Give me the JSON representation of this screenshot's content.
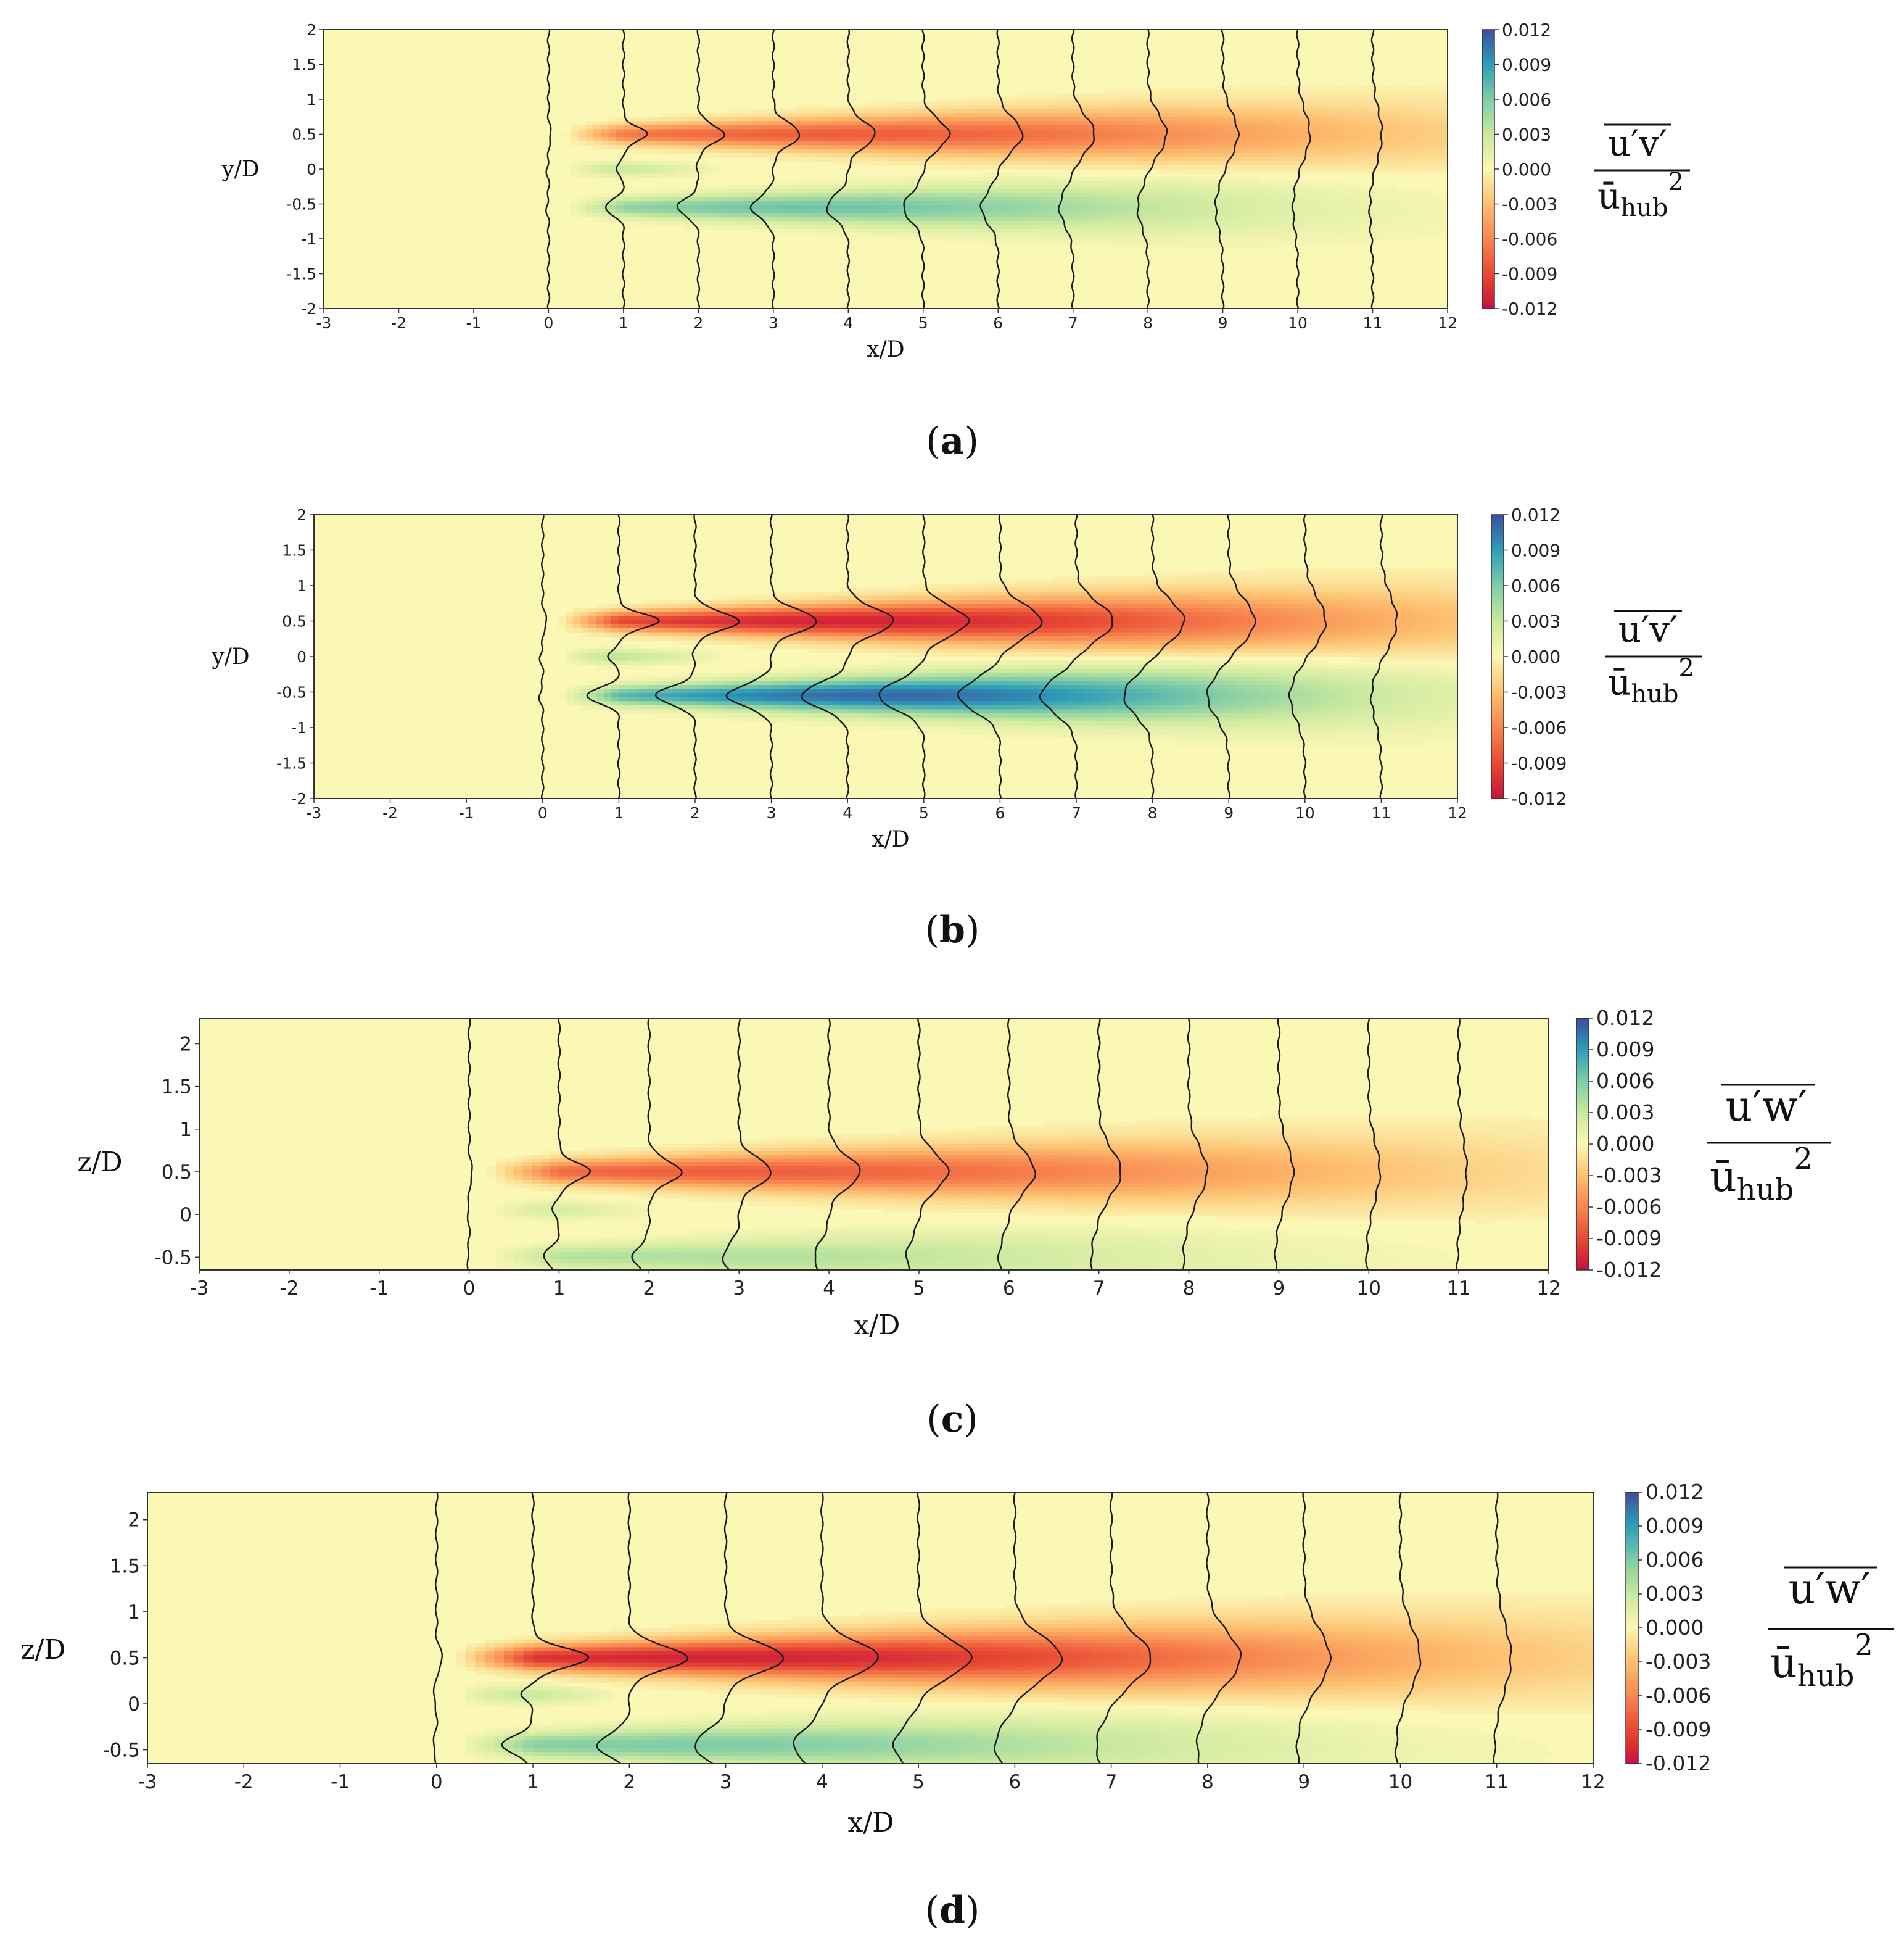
{
  "chart_data": [
    {
      "panel": "a",
      "type": "heatmap",
      "caption": "a",
      "xlabel": "x/D",
      "ylabel": "y/D",
      "xlim": [
        -3,
        12
      ],
      "ylim": [
        -2,
        2
      ],
      "xticks": [
        "-3",
        "-2",
        "-1",
        "0",
        "1",
        "2",
        "3",
        "4",
        "5",
        "6",
        "7",
        "8",
        "9",
        "10",
        "11",
        "12"
      ],
      "yticks": [
        "-2",
        "-1.5",
        "-1",
        "-0.5",
        "0",
        "0.5",
        "1",
        "1.5",
        "2"
      ],
      "colorbar": {
        "min": -0.012,
        "max": 0.012,
        "ticks": [
          "-0.012",
          "-0.009",
          "-0.006",
          "-0.003",
          "0.000",
          "0.003",
          "0.006",
          "0.009",
          "0.012"
        ],
        "quantity_top": "u′v′",
        "quantity_bottom": "ū",
        "quantity_sub": "hub",
        "quantity_sup": "2"
      },
      "field": {
        "upper_lobe_center": 0.5,
        "upper_peak": -0.008,
        "upper_peak_x": 4.0,
        "lower_lobe_center": -0.55,
        "lower_peak": 0.0065,
        "lower_peak_x": 3.5,
        "hub_lobe_center": 0.0,
        "hub_peak": 0.005,
        "hub_end_x": 2.5
      },
      "profile_stations": [
        0,
        1,
        2,
        3,
        4,
        5,
        6,
        7,
        8,
        9,
        10,
        11
      ],
      "profile_scale_frac": 0.45
    },
    {
      "panel": "b",
      "type": "heatmap",
      "caption": "b",
      "xlabel": "x/D",
      "ylabel": "y/D",
      "xlim": [
        -3,
        12
      ],
      "ylim": [
        -2,
        2
      ],
      "xticks": [
        "-3",
        "-2",
        "-1",
        "0",
        "1",
        "2",
        "3",
        "4",
        "5",
        "6",
        "7",
        "8",
        "9",
        "10",
        "11",
        "12"
      ],
      "yticks": [
        "-2",
        "-1.5",
        "-1",
        "-0.5",
        "0",
        "0.5",
        "1",
        "1.5",
        "2"
      ],
      "colorbar": {
        "min": -0.012,
        "max": 0.012,
        "ticks": [
          "-0.012",
          "-0.009",
          "-0.006",
          "-0.003",
          "0.000",
          "0.003",
          "0.006",
          "0.009",
          "0.012"
        ],
        "quantity_top": "u′v′",
        "quantity_bottom": "ū",
        "quantity_sub": "hub",
        "quantity_sup": "2"
      },
      "field": {
        "upper_lobe_center": 0.5,
        "upper_peak": -0.011,
        "upper_peak_x": 4.0,
        "lower_lobe_center": -0.55,
        "lower_peak": 0.011,
        "lower_peak_x": 4.5,
        "hub_lobe_center": 0.0,
        "hub_peak": 0.006,
        "hub_end_x": 2.5
      },
      "profile_stations": [
        0,
        1,
        2,
        3,
        4,
        5,
        6,
        7,
        8,
        9,
        10,
        11
      ],
      "profile_scale_frac": 0.55
    },
    {
      "panel": "c",
      "type": "heatmap",
      "caption": "c",
      "xlabel": "x/D",
      "ylabel": "z/D",
      "xlim": [
        -3,
        12
      ],
      "ylim": [
        -0.65,
        2.3
      ],
      "xticks": [
        "-3",
        "-2",
        "-1",
        "0",
        "1",
        "2",
        "3",
        "4",
        "5",
        "6",
        "7",
        "8",
        "9",
        "10",
        "11",
        "12"
      ],
      "yticks": [
        "-0.5",
        "0",
        "0.5",
        "1",
        "1.5",
        "2"
      ],
      "colorbar": {
        "min": -0.012,
        "max": 0.012,
        "ticks": [
          "-0.012",
          "-0.009",
          "-0.006",
          "-0.003",
          "0.000",
          "0.003",
          "0.006",
          "0.009",
          "0.012"
        ],
        "quantity_top": "u′w′",
        "quantity_bottom": "ū",
        "quantity_sub": "hub",
        "quantity_sup": "2"
      },
      "field": {
        "upper_lobe_center": 0.5,
        "upper_peak": -0.008,
        "upper_peak_x": 3.0,
        "lower_lobe_center": -0.5,
        "lower_peak": 0.004,
        "lower_peak_x": 2.5,
        "hub_lobe_center": 0.05,
        "hub_peak": 0.004,
        "hub_end_x": 2.3
      },
      "profile_stations": [
        0,
        1,
        2,
        3,
        4,
        5,
        6,
        7,
        8,
        9,
        10,
        11
      ],
      "profile_scale_frac": 0.45
    },
    {
      "panel": "d",
      "type": "heatmap",
      "caption": "d",
      "xlabel": "x/D",
      "ylabel": "z/D",
      "xlim": [
        -3,
        12
      ],
      "ylim": [
        -0.65,
        2.3
      ],
      "xticks": [
        "-3",
        "-2",
        "-1",
        "0",
        "1",
        "2",
        "3",
        "4",
        "5",
        "6",
        "7",
        "8",
        "9",
        "10",
        "11",
        "12"
      ],
      "yticks": [
        "-0.5",
        "0",
        "0.5",
        "1",
        "1.5",
        "2"
      ],
      "colorbar": {
        "min": -0.012,
        "max": 0.012,
        "ticks": [
          "-0.012",
          "-0.009",
          "-0.006",
          "-0.003",
          "0.000",
          "0.003",
          "0.006",
          "0.009",
          "0.012"
        ],
        "quantity_top": "u′w′",
        "quantity_bottom": "ū",
        "quantity_sub": "hub",
        "quantity_sup": "2"
      },
      "field": {
        "upper_lobe_center": 0.5,
        "upper_peak": -0.011,
        "upper_peak_x": 3.0,
        "lower_lobe_center": -0.45,
        "lower_peak": 0.006,
        "lower_peak_x": 2.5,
        "hub_lobe_center": 0.1,
        "hub_peak": 0.006,
        "hub_end_x": 2.0
      },
      "profile_stations": [
        0,
        1,
        2,
        3,
        4,
        5,
        6,
        7,
        8,
        9,
        10,
        11
      ],
      "profile_scale_frac": 0.55
    }
  ]
}
